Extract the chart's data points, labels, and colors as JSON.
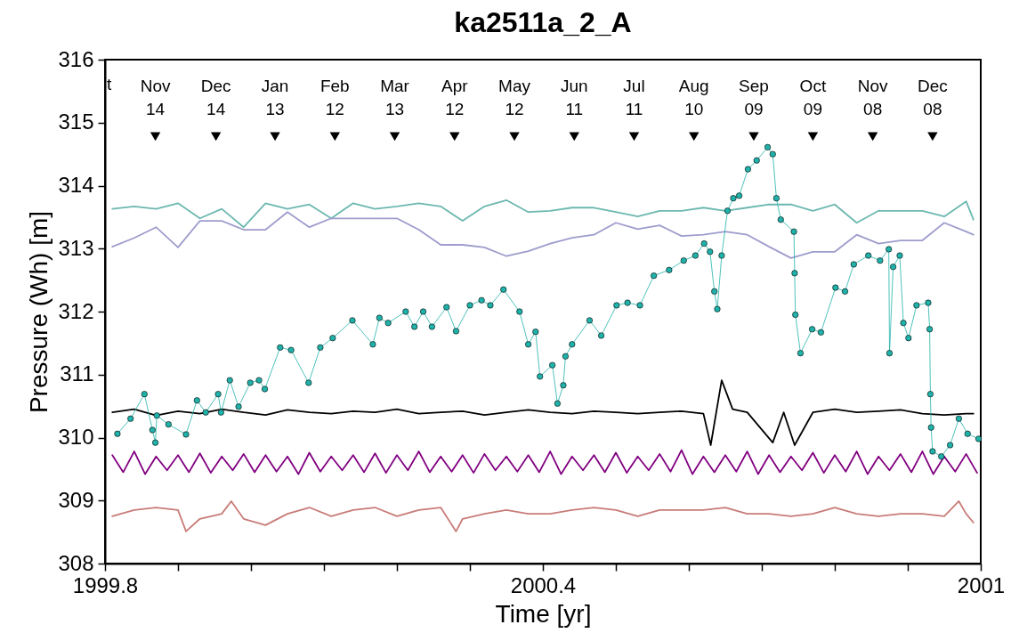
{
  "chart_data": {
    "type": "line",
    "title": "ka2511a_2_A",
    "xlabel": "Time [yr]",
    "ylabel": "Pressure (Wh) [m]",
    "xlim": [
      1999.8,
      2001
    ],
    "ylim": [
      308,
      316
    ],
    "xticks": [
      1999.8,
      {
        "value": 1999.9,
        "label": null
      },
      {
        "value": 2000.0,
        "label": null
      },
      {
        "value": 2000.1,
        "label": null
      },
      {
        "value": 2000.2,
        "label": null
      },
      {
        "value": 2000.3,
        "label": null
      },
      2000.4,
      {
        "value": 2000.5,
        "label": null
      },
      {
        "value": 2000.6,
        "label": null
      },
      {
        "value": 2000.7,
        "label": null
      },
      {
        "value": 2000.8,
        "label": null
      },
      {
        "value": 2000.9,
        "label": null
      },
      2001
    ],
    "yticks": [
      308,
      309,
      310,
      311,
      312,
      313,
      314,
      315,
      316
    ],
    "series": [
      {
        "color": "#6cb8b0",
        "x": [
          1999.81,
          1999.84,
          1999.87,
          1999.9,
          1999.93,
          1999.96,
          1999.99,
          2000.02,
          2000.05,
          2000.08,
          2000.11,
          2000.14,
          2000.17,
          2000.2,
          2000.23,
          2000.26,
          2000.29,
          2000.32,
          2000.35,
          2000.38,
          2000.41,
          2000.44,
          2000.47,
          2000.5,
          2000.53,
          2000.56,
          2000.59,
          2000.62,
          2000.65,
          2000.68,
          2000.71,
          2000.74,
          2000.77,
          2000.8,
          2000.83,
          2000.86,
          2000.89,
          2000.92,
          2000.95,
          2000.98,
          2000.99
        ],
        "values": [
          313.63,
          313.67,
          313.63,
          313.72,
          313.48,
          313.63,
          313.34,
          313.72,
          313.63,
          313.7,
          313.48,
          313.72,
          313.63,
          313.67,
          313.72,
          313.67,
          313.44,
          313.67,
          313.77,
          313.58,
          313.6,
          313.65,
          313.65,
          313.58,
          313.51,
          313.6,
          313.6,
          313.65,
          313.6,
          313.65,
          313.7,
          313.7,
          313.6,
          313.7,
          313.41,
          313.6,
          313.6,
          313.6,
          313.51,
          313.75,
          313.46
        ]
      },
      {
        "color": "#9e9ccc",
        "x": [
          1999.81,
          1999.84,
          1999.87,
          1999.9,
          1999.93,
          1999.96,
          1999.99,
          2000.02,
          2000.05,
          2000.08,
          2000.11,
          2000.14,
          2000.17,
          2000.2,
          2000.23,
          2000.26,
          2000.29,
          2000.32,
          2000.35,
          2000.38,
          2000.41,
          2000.44,
          2000.47,
          2000.5,
          2000.53,
          2000.56,
          2000.59,
          2000.62,
          2000.65,
          2000.68,
          2000.71,
          2000.74,
          2000.77,
          2000.8,
          2000.83,
          2000.86,
          2000.89,
          2000.92,
          2000.95,
          2000.98,
          2000.99
        ],
        "values": [
          313.03,
          313.17,
          313.34,
          313.02,
          313.44,
          313.44,
          313.3,
          313.3,
          313.58,
          313.34,
          313.48,
          313.48,
          313.48,
          313.48,
          313.3,
          313.06,
          313.06,
          313.02,
          312.88,
          312.96,
          313.08,
          313.17,
          313.22,
          313.41,
          313.31,
          313.37,
          313.2,
          313.22,
          313.27,
          313.22,
          313.03,
          312.85,
          312.95,
          312.95,
          313.22,
          313.08,
          313.13,
          313.13,
          313.41,
          313.27,
          313.22
        ]
      },
      {
        "color": "#000000",
        "x": [
          1999.81,
          1999.84,
          1999.87,
          1999.9,
          1999.93,
          1999.96,
          1999.99,
          2000.02,
          2000.05,
          2000.08,
          2000.11,
          2000.14,
          2000.17,
          2000.2,
          2000.23,
          2000.26,
          2000.29,
          2000.32,
          2000.35,
          2000.38,
          2000.41,
          2000.44,
          2000.47,
          2000.5,
          2000.53,
          2000.56,
          2000.59,
          2000.62,
          2000.63,
          2000.645,
          2000.66,
          2000.68,
          2000.715,
          2000.73,
          2000.745,
          2000.77,
          2000.8,
          2000.83,
          2000.86,
          2000.89,
          2000.92,
          2000.95,
          2000.98,
          2000.99
        ],
        "values": [
          310.4,
          310.45,
          310.35,
          310.42,
          310.38,
          310.45,
          310.4,
          310.36,
          310.44,
          310.4,
          310.38,
          310.42,
          310.4,
          310.45,
          310.38,
          310.4,
          310.42,
          310.36,
          310.4,
          310.44,
          310.4,
          310.38,
          310.42,
          310.4,
          310.38,
          310.4,
          310.42,
          310.38,
          309.88,
          310.91,
          310.45,
          310.4,
          309.92,
          310.4,
          309.88,
          310.4,
          310.45,
          310.4,
          310.42,
          310.44,
          310.38,
          310.36,
          310.38,
          310.38
        ]
      },
      {
        "color": "#800080",
        "x": [
          1999.81,
          1999.825,
          1999.84,
          1999.855,
          1999.87,
          1999.885,
          1999.9,
          1999.915,
          1999.93,
          1999.945,
          1999.96,
          1999.975,
          1999.99,
          2000.005,
          2000.02,
          2000.035,
          2000.05,
          2000.065,
          2000.08,
          2000.095,
          2000.11,
          2000.125,
          2000.14,
          2000.155,
          2000.17,
          2000.185,
          2000.2,
          2000.215,
          2000.23,
          2000.245,
          2000.26,
          2000.275,
          2000.29,
          2000.305,
          2000.32,
          2000.335,
          2000.35,
          2000.365,
          2000.38,
          2000.395,
          2000.41,
          2000.425,
          2000.44,
          2000.455,
          2000.47,
          2000.485,
          2000.5,
          2000.515,
          2000.53,
          2000.545,
          2000.56,
          2000.575,
          2000.59,
          2000.605,
          2000.62,
          2000.635,
          2000.65,
          2000.665,
          2000.68,
          2000.695,
          2000.71,
          2000.725,
          2000.74,
          2000.755,
          2000.77,
          2000.785,
          2000.8,
          2000.815,
          2000.83,
          2000.845,
          2000.86,
          2000.875,
          2000.89,
          2000.905,
          2000.92,
          2000.935,
          2000.95,
          2000.965,
          2000.98,
          2000.995
        ],
        "values": [
          309.72,
          309.45,
          309.78,
          309.42,
          309.7,
          309.48,
          309.72,
          309.45,
          309.75,
          309.44,
          309.7,
          309.48,
          309.74,
          309.45,
          309.72,
          309.46,
          309.7,
          309.42,
          309.76,
          309.46,
          309.7,
          309.48,
          309.72,
          309.45,
          309.75,
          309.44,
          309.72,
          309.48,
          309.78,
          309.45,
          309.7,
          309.46,
          309.72,
          309.44,
          309.74,
          309.48,
          309.7,
          309.46,
          309.72,
          309.45,
          309.78,
          309.42,
          309.7,
          309.48,
          309.72,
          309.45,
          309.76,
          309.44,
          309.7,
          309.48,
          309.74,
          309.46,
          309.8,
          309.42,
          309.7,
          309.45,
          309.72,
          309.46,
          309.78,
          309.42,
          309.72,
          309.45,
          309.7,
          309.48,
          309.76,
          309.44,
          309.72,
          309.46,
          309.78,
          309.42,
          309.7,
          309.48,
          309.74,
          309.45,
          309.78,
          309.42,
          309.7,
          309.46,
          309.74,
          309.44
        ]
      },
      {
        "color": "#c87c78",
        "x": [
          1999.81,
          1999.84,
          1999.87,
          1999.9,
          1999.911,
          1999.93,
          1999.96,
          1999.973,
          1999.99,
          2000.02,
          2000.05,
          2000.08,
          2000.11,
          2000.14,
          2000.17,
          2000.2,
          2000.23,
          2000.26,
          2000.281,
          2000.29,
          2000.32,
          2000.35,
          2000.38,
          2000.41,
          2000.44,
          2000.47,
          2000.5,
          2000.53,
          2000.56,
          2000.59,
          2000.62,
          2000.65,
          2000.68,
          2000.71,
          2000.74,
          2000.77,
          2000.8,
          2000.83,
          2000.86,
          2000.89,
          2000.92,
          2000.95,
          2000.97,
          2000.98,
          2000.99
        ],
        "values": [
          308.75,
          308.85,
          308.89,
          308.85,
          308.51,
          308.71,
          308.79,
          308.99,
          308.71,
          308.61,
          308.79,
          308.89,
          308.75,
          308.85,
          308.89,
          308.75,
          308.85,
          308.89,
          308.51,
          308.71,
          308.79,
          308.85,
          308.79,
          308.79,
          308.85,
          308.89,
          308.85,
          308.75,
          308.85,
          308.85,
          308.85,
          308.89,
          308.79,
          308.79,
          308.75,
          308.79,
          308.89,
          308.79,
          308.75,
          308.79,
          308.79,
          308.75,
          308.99,
          308.79,
          308.65
        ]
      },
      {
        "color": "#20b2aa",
        "marker": "circle",
        "x": [
          1999.817,
          1999.835,
          1999.854,
          1999.865,
          1999.869,
          1999.871,
          1999.887,
          1999.911,
          1999.926,
          1999.938,
          1999.955,
          1999.959,
          1999.971,
          1999.983,
          1999.999,
          2000.011,
          2000.019,
          2000.04,
          2000.055,
          2000.079,
          2000.095,
          2000.112,
          2000.139,
          2000.167,
          2000.176,
          2000.188,
          2000.212,
          2000.224,
          2000.236,
          2000.248,
          2000.268,
          2000.281,
          2000.3,
          2000.316,
          2000.328,
          2000.346,
          2000.368,
          2000.38,
          2000.39,
          2000.396,
          2000.413,
          2000.42,
          2000.428,
          2000.431,
          2000.44,
          2000.464,
          2000.48,
          2000.501,
          2000.516,
          2000.533,
          2000.552,
          2000.573,
          2000.593,
          2000.609,
          2000.621,
          2000.629,
          2000.635,
          2000.639,
          2000.645,
          2000.653,
          2000.661,
          2000.669,
          2000.681,
          2000.693,
          2000.708,
          2000.715,
          2000.72,
          2000.726,
          2000.744,
          2000.745,
          2000.746,
          2000.753,
          2000.769,
          2000.781,
          2000.801,
          2000.814,
          2000.826,
          2000.846,
          2000.862,
          2000.874,
          2000.875,
          2000.88,
          2000.889,
          2000.894,
          2000.901,
          2000.912,
          2000.928,
          2000.93,
          2000.931,
          2000.932,
          2000.934,
          2000.946,
          2000.958,
          2000.97,
          2000.982,
          2000.997
        ],
        "values": [
          310.06,
          310.3,
          310.69,
          310.12,
          309.92,
          310.35,
          310.21,
          310.05,
          310.59,
          310.4,
          310.69,
          310.4,
          310.91,
          310.49,
          310.87,
          310.91,
          310.77,
          311.43,
          311.39,
          310.87,
          311.43,
          311.58,
          311.86,
          311.48,
          311.9,
          311.82,
          312.0,
          311.76,
          312.0,
          311.76,
          312.07,
          311.69,
          312.1,
          312.18,
          312.1,
          312.35,
          312.0,
          311.48,
          311.68,
          310.97,
          311.15,
          310.54,
          310.83,
          311.29,
          311.48,
          311.86,
          311.62,
          312.1,
          312.14,
          312.1,
          312.57,
          312.66,
          312.81,
          312.89,
          313.08,
          312.95,
          312.32,
          312.04,
          312.89,
          313.6,
          313.8,
          313.84,
          314.26,
          314.4,
          314.61,
          314.5,
          313.8,
          313.46,
          313.27,
          312.61,
          311.95,
          311.34,
          311.72,
          311.67,
          312.38,
          312.32,
          312.75,
          312.89,
          312.81,
          312.99,
          311.34,
          312.71,
          312.89,
          311.82,
          311.58,
          312.1,
          312.14,
          311.72,
          310.69,
          310.16,
          309.78,
          309.7,
          309.88,
          310.3,
          310.06,
          309.98
        ]
      },
      {
        "type": "scatter",
        "color": "#000000",
        "marker": "triangle",
        "x": [
          1999.869,
          1999.952,
          2000.033,
          2000.115,
          2000.197,
          2000.279,
          2000.361,
          2000.443,
          2000.525,
          2000.607,
          2000.689,
          2000.77,
          2000.852,
          2000.934
        ],
        "values": [
          314.78,
          314.78,
          314.78,
          314.78,
          314.78,
          314.78,
          314.78,
          314.78,
          314.78,
          314.78,
          314.78,
          314.78,
          314.78,
          314.78
        ]
      }
    ],
    "annotations": [
      "t",
      {
        "text": "Nov\n14",
        "x": 1999.869,
        "y": 314.78
      },
      {
        "text": "Dec\n14",
        "x": 1999.952,
        "y": 314.78
      },
      {
        "text": "Jan\n13",
        "x": 2000.033,
        "y": 314.78
      },
      {
        "text": "Feb\n12",
        "x": 2000.115,
        "y": 314.78
      },
      {
        "text": "Mar\n13",
        "x": 2000.197,
        "y": 314.78
      },
      {
        "text": "Apr\n12",
        "x": 2000.279,
        "y": 314.78
      },
      {
        "text": "May\n12",
        "x": 2000.361,
        "y": 314.78
      },
      {
        "text": "Jun\n11",
        "x": 2000.443,
        "y": 314.78
      },
      {
        "text": "Jul\n11",
        "x": 2000.525,
        "y": 314.78
      },
      {
        "text": "Aug\n10",
        "x": 2000.607,
        "y": 314.78
      },
      {
        "text": "Sep\n09",
        "x": 2000.689,
        "y": 314.78
      },
      {
        "text": "Oct\n09",
        "x": 2000.77,
        "y": 314.78
      },
      {
        "text": "Nov\n08",
        "x": 2000.852,
        "y": 314.78
      },
      {
        "text": "Dec\n08",
        "x": 2000.934,
        "y": 314.78
      }
    ]
  }
}
